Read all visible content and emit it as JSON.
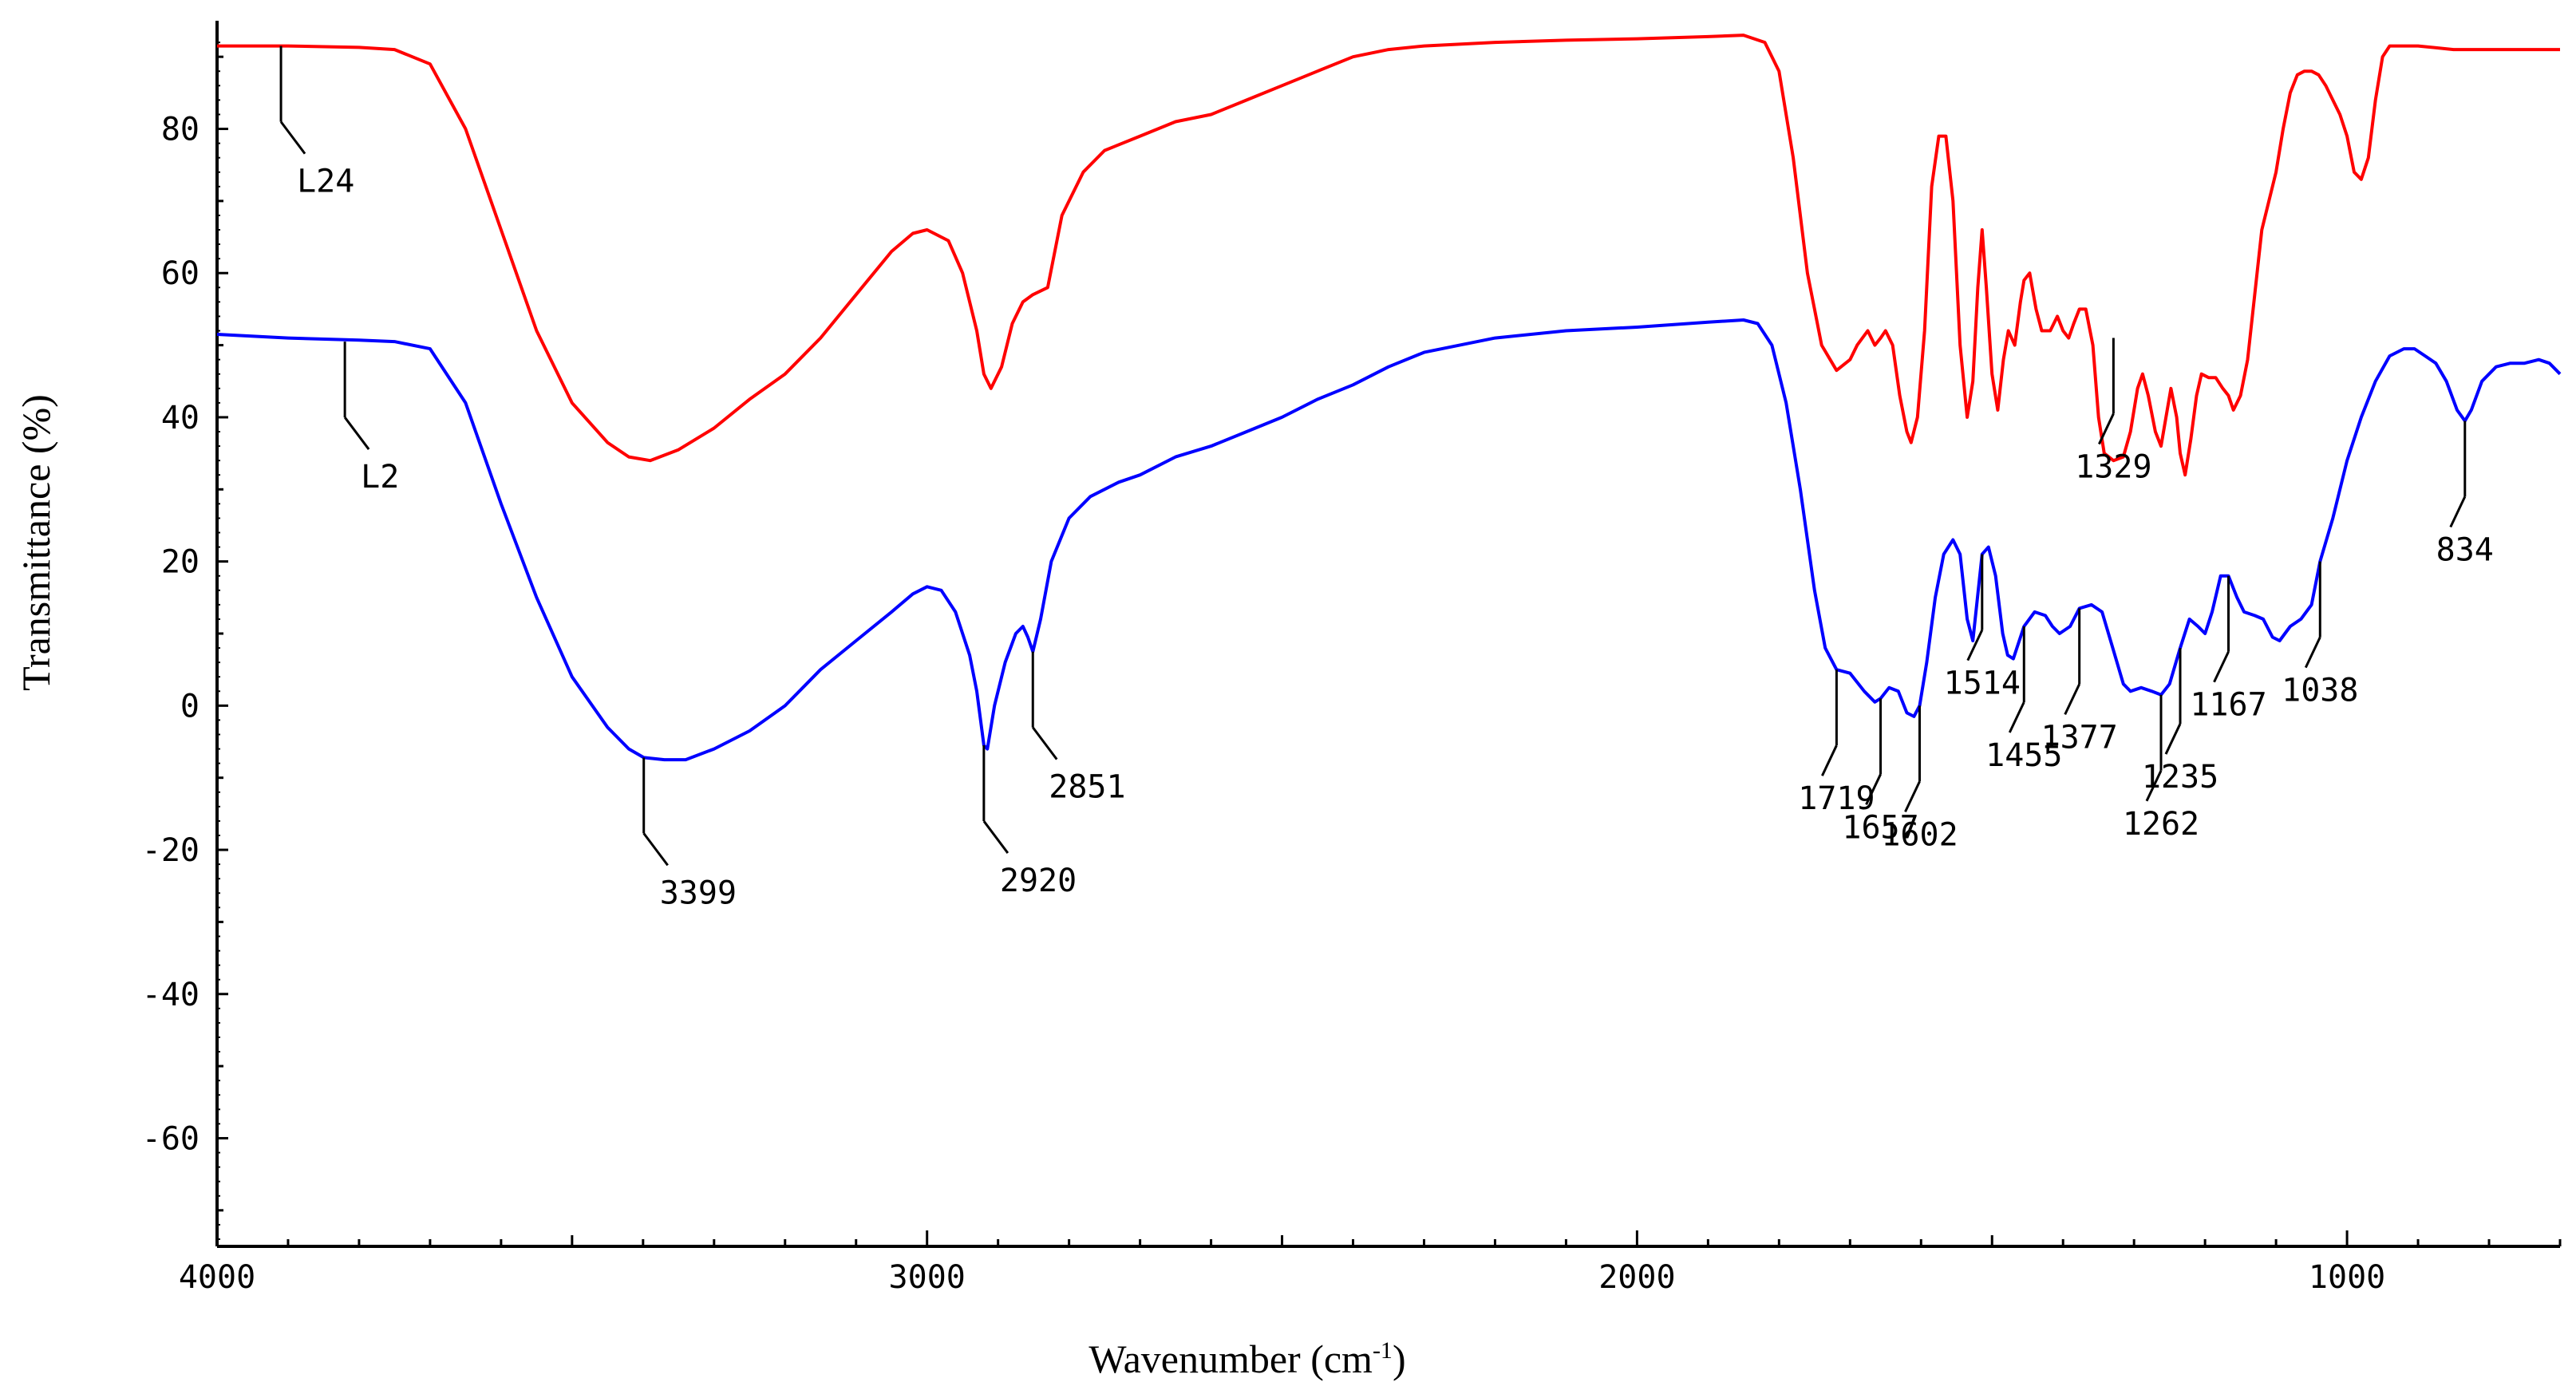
{
  "chart_data": {
    "type": "line",
    "xlabel": "Wavenumber (cm",
    "xlabel_sup": "-1",
    "xlabel_close": ")",
    "ylabel": "Transmittance (%)",
    "xlim": [
      4000,
      700
    ],
    "ylim": [
      -75,
      95
    ],
    "x_ticks": [
      4000,
      3000,
      2000,
      1000
    ],
    "y_ticks": [
      -60,
      -40,
      -20,
      0,
      20,
      40,
      60,
      80
    ],
    "grid": false,
    "series": [
      {
        "name": "L24",
        "color": "#ff0000",
        "points": [
          [
            4000,
            91.5
          ],
          [
            3900,
            91.5
          ],
          [
            3800,
            91.3
          ],
          [
            3750,
            91
          ],
          [
            3700,
            89
          ],
          [
            3650,
            80
          ],
          [
            3600,
            66
          ],
          [
            3550,
            52
          ],
          [
            3500,
            42
          ],
          [
            3450,
            36.5
          ],
          [
            3420,
            34.5
          ],
          [
            3390,
            34
          ],
          [
            3350,
            35.5
          ],
          [
            3300,
            38.5
          ],
          [
            3250,
            42.5
          ],
          [
            3200,
            46
          ],
          [
            3150,
            51
          ],
          [
            3100,
            57
          ],
          [
            3050,
            63
          ],
          [
            3020,
            65.5
          ],
          [
            3000,
            66
          ],
          [
            2970,
            64.5
          ],
          [
            2950,
            60
          ],
          [
            2930,
            52
          ],
          [
            2920,
            46
          ],
          [
            2910,
            44
          ],
          [
            2895,
            47
          ],
          [
            2880,
            53
          ],
          [
            2865,
            56
          ],
          [
            2851,
            57
          ],
          [
            2830,
            58
          ],
          [
            2810,
            68
          ],
          [
            2780,
            74
          ],
          [
            2750,
            77
          ],
          [
            2700,
            79
          ],
          [
            2650,
            81
          ],
          [
            2600,
            82
          ],
          [
            2550,
            84
          ],
          [
            2500,
            86
          ],
          [
            2450,
            88
          ],
          [
            2400,
            90
          ],
          [
            2350,
            91
          ],
          [
            2300,
            91.5
          ],
          [
            2200,
            92
          ],
          [
            2100,
            92.3
          ],
          [
            2000,
            92.5
          ],
          [
            1900,
            92.8
          ],
          [
            1850,
            93
          ],
          [
            1820,
            92
          ],
          [
            1800,
            88
          ],
          [
            1780,
            76
          ],
          [
            1760,
            60
          ],
          [
            1740,
            50
          ],
          [
            1719,
            46.5
          ],
          [
            1700,
            48
          ],
          [
            1690,
            50
          ],
          [
            1675,
            52
          ],
          [
            1665,
            50
          ],
          [
            1657,
            51
          ],
          [
            1650,
            52
          ],
          [
            1640,
            50
          ],
          [
            1630,
            43
          ],
          [
            1620,
            38
          ],
          [
            1614,
            36.5
          ],
          [
            1605,
            40
          ],
          [
            1595,
            52
          ],
          [
            1585,
            72
          ],
          [
            1575,
            79
          ],
          [
            1565,
            79
          ],
          [
            1555,
            70
          ],
          [
            1545,
            50
          ],
          [
            1535,
            40
          ],
          [
            1527,
            45
          ],
          [
            1520,
            58
          ],
          [
            1514,
            66
          ],
          [
            1508,
            58
          ],
          [
            1500,
            46
          ],
          [
            1492,
            41
          ],
          [
            1484,
            48
          ],
          [
            1477,
            52
          ],
          [
            1468,
            50
          ],
          [
            1460,
            56
          ],
          [
            1455,
            59
          ],
          [
            1447,
            60
          ],
          [
            1438,
            55
          ],
          [
            1430,
            52
          ],
          [
            1418,
            52
          ],
          [
            1408,
            54
          ],
          [
            1400,
            52
          ],
          [
            1392,
            51
          ],
          [
            1385,
            53
          ],
          [
            1377,
            55
          ],
          [
            1368,
            55
          ],
          [
            1358,
            50
          ],
          [
            1350,
            40
          ],
          [
            1342,
            35
          ],
          [
            1329,
            34
          ],
          [
            1315,
            34.5
          ],
          [
            1305,
            38
          ],
          [
            1295,
            44
          ],
          [
            1288,
            46
          ],
          [
            1280,
            43
          ],
          [
            1270,
            38
          ],
          [
            1262,
            36
          ],
          [
            1255,
            40
          ],
          [
            1248,
            44
          ],
          [
            1240,
            40
          ],
          [
            1235,
            35
          ],
          [
            1228,
            32
          ],
          [
            1220,
            37
          ],
          [
            1212,
            43
          ],
          [
            1205,
            46
          ],
          [
            1195,
            45.5
          ],
          [
            1185,
            45.5
          ],
          [
            1175,
            44
          ],
          [
            1167,
            43
          ],
          [
            1160,
            41
          ],
          [
            1150,
            43
          ],
          [
            1140,
            48
          ],
          [
            1130,
            57
          ],
          [
            1120,
            66
          ],
          [
            1110,
            70
          ],
          [
            1100,
            74
          ],
          [
            1090,
            80
          ],
          [
            1080,
            85
          ],
          [
            1070,
            87.5
          ],
          [
            1060,
            88
          ],
          [
            1050,
            88
          ],
          [
            1040,
            87.5
          ],
          [
            1030,
            86
          ],
          [
            1020,
            84
          ],
          [
            1010,
            82
          ],
          [
            1000,
            79
          ],
          [
            990,
            74
          ],
          [
            980,
            73
          ],
          [
            970,
            76
          ],
          [
            960,
            84
          ],
          [
            950,
            90
          ],
          [
            940,
            91.5
          ],
          [
            900,
            91.5
          ],
          [
            850,
            91
          ],
          [
            800,
            91
          ],
          [
            750,
            91
          ],
          [
            700,
            91
          ]
        ]
      },
      {
        "name": "L2",
        "color": "#0000ff",
        "points": [
          [
            4000,
            51.5
          ],
          [
            3900,
            51
          ],
          [
            3800,
            50.7
          ],
          [
            3750,
            50.5
          ],
          [
            3700,
            49.5
          ],
          [
            3650,
            42
          ],
          [
            3600,
            28
          ],
          [
            3550,
            15
          ],
          [
            3500,
            4
          ],
          [
            3450,
            -3
          ],
          [
            3420,
            -6
          ],
          [
            3399,
            -7.2
          ],
          [
            3370,
            -7.5
          ],
          [
            3340,
            -7.5
          ],
          [
            3300,
            -6
          ],
          [
            3250,
            -3.5
          ],
          [
            3200,
            0
          ],
          [
            3150,
            5
          ],
          [
            3100,
            9
          ],
          [
            3050,
            13
          ],
          [
            3020,
            15.5
          ],
          [
            3000,
            16.5
          ],
          [
            2980,
            16
          ],
          [
            2960,
            13
          ],
          [
            2940,
            7
          ],
          [
            2930,
            2
          ],
          [
            2920,
            -5.5
          ],
          [
            2915,
            -6
          ],
          [
            2905,
            0
          ],
          [
            2890,
            6
          ],
          [
            2875,
            10
          ],
          [
            2865,
            11
          ],
          [
            2858,
            9.5
          ],
          [
            2851,
            7.5
          ],
          [
            2840,
            12
          ],
          [
            2825,
            20
          ],
          [
            2800,
            26
          ],
          [
            2770,
            29
          ],
          [
            2730,
            31
          ],
          [
            2700,
            32
          ],
          [
            2650,
            34.5
          ],
          [
            2600,
            36
          ],
          [
            2550,
            38
          ],
          [
            2500,
            40
          ],
          [
            2450,
            42.5
          ],
          [
            2400,
            44.5
          ],
          [
            2350,
            47
          ],
          [
            2300,
            49
          ],
          [
            2200,
            51
          ],
          [
            2100,
            52
          ],
          [
            2000,
            52.5
          ],
          [
            1900,
            53.2
          ],
          [
            1850,
            53.5
          ],
          [
            1830,
            53
          ],
          [
            1810,
            50
          ],
          [
            1790,
            42
          ],
          [
            1770,
            30
          ],
          [
            1750,
            16
          ],
          [
            1735,
            8
          ],
          [
            1719,
            5
          ],
          [
            1700,
            4.5
          ],
          [
            1680,
            2
          ],
          [
            1665,
            0.5
          ],
          [
            1657,
            1
          ],
          [
            1645,
            2.5
          ],
          [
            1632,
            2
          ],
          [
            1620,
            -1
          ],
          [
            1610,
            -1.5
          ],
          [
            1602,
            0
          ],
          [
            1592,
            6
          ],
          [
            1580,
            15
          ],
          [
            1568,
            21
          ],
          [
            1555,
            23
          ],
          [
            1545,
            21
          ],
          [
            1535,
            12
          ],
          [
            1527,
            9
          ],
          [
            1514,
            21
          ],
          [
            1505,
            22
          ],
          [
            1495,
            18
          ],
          [
            1485,
            10
          ],
          [
            1478,
            7
          ],
          [
            1470,
            6.5
          ],
          [
            1455,
            11
          ],
          [
            1440,
            13
          ],
          [
            1425,
            12.5
          ],
          [
            1415,
            11
          ],
          [
            1405,
            10
          ],
          [
            1390,
            11
          ],
          [
            1377,
            13.5
          ],
          [
            1360,
            14
          ],
          [
            1345,
            13
          ],
          [
            1330,
            8
          ],
          [
            1315,
            3
          ],
          [
            1305,
            2
          ],
          [
            1290,
            2.5
          ],
          [
            1275,
            2
          ],
          [
            1262,
            1.5
          ],
          [
            1250,
            3
          ],
          [
            1235,
            8
          ],
          [
            1222,
            12
          ],
          [
            1210,
            11
          ],
          [
            1200,
            10
          ],
          [
            1190,
            13
          ],
          [
            1178,
            18
          ],
          [
            1167,
            18
          ],
          [
            1155,
            15
          ],
          [
            1145,
            13
          ],
          [
            1130,
            12.5
          ],
          [
            1118,
            12
          ],
          [
            1105,
            9.5
          ],
          [
            1095,
            9
          ],
          [
            1080,
            11
          ],
          [
            1065,
            12
          ],
          [
            1050,
            14
          ],
          [
            1038,
            20
          ],
          [
            1020,
            26
          ],
          [
            1000,
            34
          ],
          [
            980,
            40
          ],
          [
            960,
            45
          ],
          [
            940,
            48.5
          ],
          [
            920,
            49.5
          ],
          [
            905,
            49.5
          ],
          [
            890,
            48.5
          ],
          [
            875,
            47.5
          ],
          [
            860,
            45
          ],
          [
            845,
            41
          ],
          [
            834,
            39.5
          ],
          [
            825,
            41
          ],
          [
            810,
            45
          ],
          [
            790,
            47
          ],
          [
            770,
            47.5
          ],
          [
            750,
            47.5
          ],
          [
            730,
            48
          ],
          [
            715,
            47.5
          ],
          [
            700,
            46
          ]
        ]
      }
    ],
    "annotations": [
      {
        "text": "L24",
        "x": 3910,
        "y": 91.5,
        "align": "left"
      },
      {
        "text": "L2",
        "x": 3820,
        "y": 50.5,
        "align": "left"
      },
      {
        "text": "3399",
        "x": 3399,
        "y": -7.2,
        "align": "left"
      },
      {
        "text": "2920",
        "x": 2920,
        "y": -5.5,
        "align": "left"
      },
      {
        "text": "2851",
        "x": 2851,
        "y": 7.5,
        "align": "left"
      },
      {
        "text": "1719",
        "x": 1719,
        "y": 5,
        "align": "center"
      },
      {
        "text": "1657",
        "x": 1657,
        "y": 1,
        "align": "center"
      },
      {
        "text": "1602",
        "x": 1602,
        "y": 0,
        "align": "center"
      },
      {
        "text": "1514",
        "x": 1514,
        "y": 21,
        "align": "center"
      },
      {
        "text": "1455",
        "x": 1455,
        "y": 11,
        "align": "center"
      },
      {
        "text": "1377",
        "x": 1377,
        "y": 13.5,
        "align": "center"
      },
      {
        "text": "1329",
        "x": 1329,
        "y": 51,
        "align": "center"
      },
      {
        "text": "1262",
        "x": 1262,
        "y": 1.5,
        "align": "center"
      },
      {
        "text": "1235",
        "x": 1235,
        "y": 8,
        "align": "center"
      },
      {
        "text": "1167",
        "x": 1167,
        "y": 18,
        "align": "center"
      },
      {
        "text": "1038",
        "x": 1038,
        "y": 20,
        "align": "center"
      },
      {
        "text": "834",
        "x": 834,
        "y": 39.5,
        "align": "center"
      }
    ]
  }
}
